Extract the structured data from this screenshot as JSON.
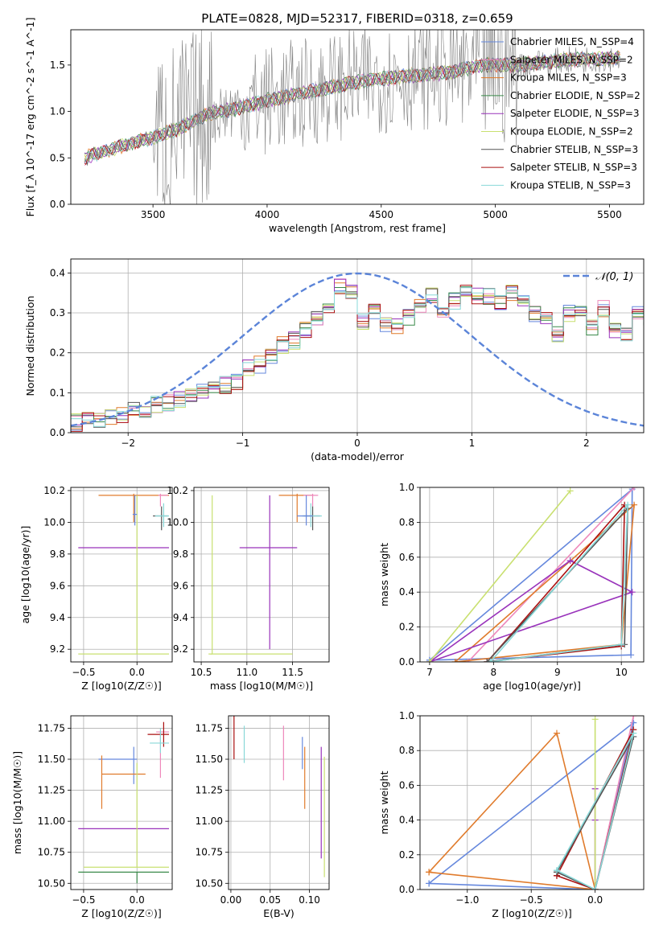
{
  "title": "PLATE=0828, MJD=52317, FIBERID=0318, z=0.659",
  "chart_data": [
    {
      "id": "spectrum",
      "type": "line",
      "xlabel": "wavelength [Angstrom, rest frame]",
      "ylabel": "Flux [f_λ 10^-17 erg cm^-2 s^-1 A^-1]",
      "xlim": [
        3140,
        5650
      ],
      "ylim": [
        0,
        1.88
      ],
      "xticks": [
        3500,
        4000,
        4500,
        5000,
        5500
      ],
      "yticks": [
        0.0,
        0.5,
        1.0,
        1.5
      ],
      "observed_color": "#808080",
      "legend_position": "upper-right",
      "series": [
        {
          "name": "Chabrier MILES, N_SSP=4",
          "color": "#6688dd"
        },
        {
          "name": "Salpeter MILES, N_SSP=2",
          "color": "#ee88bb"
        },
        {
          "name": "Kroupa MILES, N_SSP=3",
          "color": "#e07b2c"
        },
        {
          "name": "Chabrier ELODIE, N_SSP=2",
          "color": "#3a8a4a"
        },
        {
          "name": "Salpeter ELODIE, N_SSP=3",
          "color": "#9933bb"
        },
        {
          "name": "Kroupa ELODIE, N_SSP=2",
          "color": "#c9e070"
        },
        {
          "name": "Chabrier STELIB, N_SSP=3",
          "color": "#555555"
        },
        {
          "name": "Salpeter STELIB, N_SSP=3",
          "color": "#aa1111"
        },
        {
          "name": "Kroupa STELIB, N_SSP=3",
          "color": "#88d8d8"
        }
      ],
      "model_trend": {
        "x": [
          3200,
          3350,
          3500,
          3600,
          3750,
          3900,
          4000,
          4200,
          4400,
          4600,
          4800,
          4950,
          5100,
          5300,
          5550
        ],
        "y": [
          0.5,
          0.62,
          0.72,
          0.8,
          0.98,
          1.05,
          1.12,
          1.22,
          1.32,
          1.38,
          1.42,
          1.5,
          1.5,
          1.55,
          1.58
        ]
      }
    },
    {
      "id": "residuals",
      "type": "line",
      "xlabel": "(data-model)/error",
      "ylabel": "Normed distribution",
      "xlim": [
        -2.5,
        2.5
      ],
      "ylim": [
        0,
        0.435
      ],
      "xticks": [
        -2,
        -1,
        0,
        1,
        2
      ],
      "yticks": [
        0.0,
        0.1,
        0.2,
        0.3,
        0.4
      ],
      "legend": "𝒩(0, 1)",
      "gaussian_color": "#5b84d8",
      "bin_width": 0.1,
      "base_hist": [
        0.025,
        0.03,
        0.03,
        0.035,
        0.045,
        0.055,
        0.06,
        0.07,
        0.075,
        0.085,
        0.09,
        0.1,
        0.11,
        0.12,
        0.13,
        0.16,
        0.17,
        0.19,
        0.22,
        0.23,
        0.26,
        0.29,
        0.31,
        0.37,
        0.35,
        0.28,
        0.3,
        0.27,
        0.27,
        0.29,
        0.32,
        0.34,
        0.31,
        0.33,
        0.36,
        0.34,
        0.34,
        0.33,
        0.35,
        0.33,
        0.3,
        0.28,
        0.25,
        0.3,
        0.3,
        0.26,
        0.31,
        0.26,
        0.24,
        0.3,
        0.29,
        0.24,
        0.22,
        0.22,
        0.21,
        0.17,
        0.15,
        0.15,
        0.14,
        0.14,
        0.15,
        0.13,
        0.13,
        0.12,
        0.1,
        0.11,
        0.1,
        0.09,
        0.08,
        0.08,
        0.07,
        0.065,
        0.06,
        0.06,
        0.06
      ]
    },
    {
      "id": "age-vs-Z",
      "type": "scatter",
      "xlabel": "Z [log10(Z/Z☉)]",
      "ylabel": "age [log10(age/yr)]",
      "xlim": [
        -0.62,
        0.33
      ],
      "ylim": [
        9.12,
        10.22
      ],
      "xticks": [
        -0.5,
        0.0
      ],
      "yticks": [
        9.2,
        9.4,
        9.6,
        9.8,
        10.0,
        10.2
      ],
      "errorbars": [
        {
          "x": -0.03,
          "x0": -0.36,
          "x1": 0.3,
          "y": 10.17,
          "y0": 10.0,
          "y1": 10.18,
          "s": 2
        },
        {
          "x": 0.22,
          "x0": 0.2,
          "x1": 0.29,
          "y": 10.17,
          "y0": 10.1,
          "y1": 10.18,
          "s": 1
        },
        {
          "x": -0.03,
          "x0": -0.55,
          "x1": 0.3,
          "y": 9.84,
          "y0": 9.84,
          "y1": 9.84,
          "s": 4
        },
        {
          "x": 0.0,
          "x0": -0.55,
          "x1": 0.3,
          "y": 9.17,
          "y0": 9.17,
          "y1": 10.17,
          "s": 5
        },
        {
          "x": 0.23,
          "x0": 0.15,
          "x1": 0.29,
          "y": 10.04,
          "y0": 9.95,
          "y1": 10.1,
          "s": 6
        },
        {
          "x": 0.25,
          "x0": 0.17,
          "x1": 0.3,
          "y": 10.04,
          "y0": 9.97,
          "y1": 10.12,
          "s": 8
        },
        {
          "x": -0.02,
          "x0": -0.04,
          "x1": 0.0,
          "y": 10.05,
          "y0": 9.98,
          "y1": 10.17,
          "s": 0
        }
      ]
    },
    {
      "id": "age-vs-mass",
      "type": "scatter",
      "xlabel": "mass [log10(M/M☉)]",
      "ylabel": "",
      "xlim": [
        10.42,
        11.9
      ],
      "ylim": [
        9.12,
        10.22
      ],
      "xticks": [
        10.5,
        11.0,
        11.5
      ],
      "yticks": [
        9.2,
        9.4,
        9.6,
        9.8,
        10.0,
        10.2
      ],
      "errorbars": [
        {
          "x": 11.55,
          "x0": 11.35,
          "x1": 11.72,
          "y": 10.17,
          "y0": 10.0,
          "y1": 10.18,
          "s": 2
        },
        {
          "x": 11.72,
          "x0": 11.62,
          "x1": 11.78,
          "y": 10.17,
          "y0": 10.1,
          "y1": 10.18,
          "s": 1
        },
        {
          "x": 11.25,
          "x0": 10.92,
          "x1": 11.55,
          "y": 9.84,
          "y0": 9.2,
          "y1": 10.17,
          "s": 4
        },
        {
          "x": 10.62,
          "x0": 10.58,
          "x1": 10.62,
          "y": 9.17,
          "y0": 9.17,
          "y1": 10.17,
          "s": 5
        },
        {
          "x": 11.2,
          "x0": 10.6,
          "x1": 11.5,
          "y": 9.17,
          "y0": 9.17,
          "y1": 9.17,
          "s": 5
        },
        {
          "x": 11.72,
          "x0": 11.62,
          "x1": 11.8,
          "y": 10.04,
          "y0": 9.95,
          "y1": 10.1,
          "s": 6
        },
        {
          "x": 11.7,
          "x0": 11.6,
          "x1": 11.82,
          "y": 10.04,
          "y0": 9.97,
          "y1": 10.12,
          "s": 8
        },
        {
          "x": 11.65,
          "x0": 11.55,
          "x1": 11.72,
          "y": 10.04,
          "y0": 9.98,
          "y1": 10.17,
          "s": 0
        }
      ]
    },
    {
      "id": "weight-vs-age",
      "type": "line",
      "xlabel": "age [log10(age/yr)]",
      "ylabel": "mass weight",
      "xlim": [
        6.85,
        10.35
      ],
      "ylim": [
        0,
        1.0
      ],
      "xticks": [
        7,
        8,
        9,
        10
      ],
      "yticks": [
        0.0,
        0.2,
        0.4,
        0.6,
        0.8,
        1.0
      ],
      "series": [
        {
          "s": 0,
          "x": [
            7.0,
            10.15,
            10.17,
            7.0
          ],
          "y": [
            0.01,
            0.04,
            0.99,
            0.01
          ]
        },
        {
          "s": 1,
          "x": [
            7.6,
            10.2,
            7.6
          ],
          "y": [
            0.0,
            1.0,
            0.0
          ]
        },
        {
          "s": 2,
          "x": [
            7.4,
            10.0,
            10.2,
            7.4
          ],
          "y": [
            0.0,
            0.1,
            0.9,
            0.0
          ]
        },
        {
          "s": 4,
          "x": [
            7.0,
            9.2,
            10.17,
            7.0
          ],
          "y": [
            0.0,
            0.58,
            0.4,
            0.0
          ]
        },
        {
          "s": 5,
          "x": [
            7.0,
            9.2,
            7.0
          ],
          "y": [
            0.0,
            0.98,
            0.0
          ]
        },
        {
          "s": 7,
          "x": [
            7.9,
            10.0,
            10.05,
            7.9
          ],
          "y": [
            0.0,
            0.09,
            0.9,
            0.0
          ]
        },
        {
          "s": 6,
          "x": [
            7.9,
            10.05,
            10.1,
            7.9
          ],
          "y": [
            0.0,
            0.1,
            0.88,
            0.0
          ]
        },
        {
          "s": 8,
          "x": [
            7.95,
            10.0,
            10.1,
            7.95
          ],
          "y": [
            0.0,
            0.1,
            0.9,
            0.0
          ]
        }
      ]
    },
    {
      "id": "mass-vs-Z",
      "type": "scatter",
      "xlabel": "Z [log10(Z/Z☉)]",
      "ylabel": "mass [log10(M/M☉)]",
      "xlim": [
        -0.62,
        0.33
      ],
      "ylim": [
        10.45,
        11.85
      ],
      "xticks": [
        -0.5,
        0.0
      ],
      "yticks": [
        10.5,
        10.75,
        11.0,
        11.25,
        11.5,
        11.75
      ],
      "errorbars": [
        {
          "x": -0.03,
          "x0": -0.36,
          "x1": 0.0,
          "y": 11.5,
          "y0": 11.3,
          "y1": 11.6,
          "s": 0
        },
        {
          "x": 0.22,
          "x0": 0.18,
          "x1": 0.3,
          "y": 11.72,
          "y0": 11.35,
          "y1": 11.72,
          "s": 1
        },
        {
          "x": -0.33,
          "x0": -0.33,
          "x1": 0.08,
          "y": 11.38,
          "y0": 11.1,
          "y1": 11.53,
          "s": 2
        },
        {
          "x": -0.03,
          "x0": -0.55,
          "x1": 0.3,
          "y": 10.94,
          "y0": 10.94,
          "y1": 10.94,
          "s": 4
        },
        {
          "x": 0.0,
          "x0": -0.5,
          "x1": 0.3,
          "y": 10.63,
          "y0": 10.63,
          "y1": 11.47,
          "s": 5
        },
        {
          "x": 0.0,
          "x0": -0.55,
          "x1": 0.3,
          "y": 10.59,
          "y0": 10.5,
          "y1": 10.59,
          "s": 3
        },
        {
          "x": 0.25,
          "x0": 0.1,
          "x1": 0.3,
          "y": 11.7,
          "y0": 11.6,
          "y1": 11.8,
          "s": 7
        },
        {
          "x": 0.22,
          "x0": 0.12,
          "x1": 0.3,
          "y": 11.63,
          "y0": 11.55,
          "y1": 11.75,
          "s": 8
        }
      ]
    },
    {
      "id": "mass-vs-ebv",
      "type": "scatter",
      "xlabel": "E(B-V)",
      "ylabel": "",
      "xlim": [
        -0.003,
        0.125
      ],
      "ylim": [
        10.45,
        11.85
      ],
      "xticks": [
        0.0,
        0.05,
        0.1
      ],
      "yticks": [
        10.5,
        10.75,
        11.0,
        11.25,
        11.5,
        11.75
      ],
      "errorbars": [
        {
          "x": 0.004,
          "y0": 11.5,
          "y1": 11.87,
          "s": 7
        },
        {
          "x": 0.017,
          "y0": 11.47,
          "y1": 11.77,
          "s": 8
        },
        {
          "x": 0.067,
          "y0": 11.33,
          "y1": 11.77,
          "s": 1
        },
        {
          "x": 0.091,
          "y0": 11.42,
          "y1": 11.68,
          "s": 0
        },
        {
          "x": 0.094,
          "y0": 11.1,
          "y1": 11.6,
          "s": 2
        },
        {
          "x": 0.115,
          "y0": 10.7,
          "y1": 11.6,
          "s": 4
        },
        {
          "x": 0.119,
          "y0": 10.55,
          "y1": 11.52,
          "s": 5
        }
      ]
    },
    {
      "id": "weight-vs-Z",
      "type": "line",
      "xlabel": "Z [log10(Z/Z☉)]",
      "ylabel": "mass weight",
      "xlim": [
        -1.37,
        0.38
      ],
      "ylim": [
        0,
        1.0
      ],
      "xticks": [
        -1.0,
        -0.5,
        0.0
      ],
      "yticks": [
        0.0,
        0.2,
        0.4,
        0.6,
        0.8,
        1.0
      ],
      "series": [
        {
          "s": 0,
          "x": [
            -1.3,
            0.0,
            0.3,
            -1.3
          ],
          "y": [
            0.035,
            0.0,
            0.96,
            0.035
          ]
        },
        {
          "s": 1,
          "x": [
            0.0,
            0.3,
            0.0
          ],
          "y": [
            0.0,
            1.0,
            0.0
          ]
        },
        {
          "s": 2,
          "x": [
            -1.3,
            -0.3,
            0.0,
            -1.3
          ],
          "y": [
            0.1,
            0.9,
            0.0,
            0.1
          ]
        },
        {
          "s": 4,
          "x": [
            0.0,
            0.0,
            0.0
          ],
          "y": [
            0.58,
            0.4,
            0.0
          ]
        },
        {
          "s": 5,
          "x": [
            0.0,
            0.0,
            0.0
          ],
          "y": [
            0.0,
            0.98,
            0.0
          ]
        },
        {
          "s": 7,
          "x": [
            -0.3,
            0.0,
            0.3,
            -0.3
          ],
          "y": [
            0.08,
            0.0,
            0.92,
            0.08
          ]
        },
        {
          "s": 6,
          "x": [
            -0.3,
            0.0,
            0.3,
            -0.3
          ],
          "y": [
            0.1,
            0.0,
            0.88,
            0.1
          ]
        },
        {
          "s": 8,
          "x": [
            -0.3,
            0.0,
            0.3,
            -0.3
          ],
          "y": [
            0.11,
            0.0,
            0.9,
            0.11
          ]
        }
      ]
    }
  ]
}
